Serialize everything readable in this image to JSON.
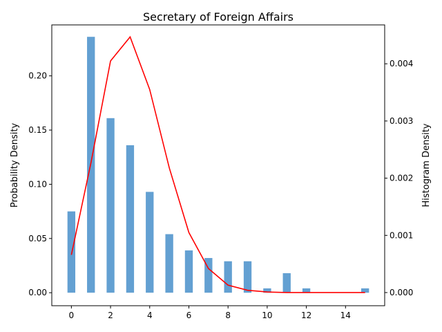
{
  "chart_data": {
    "type": "bar",
    "title": "Secretary of Foreign Affairs",
    "xlabel": "",
    "ylabel": "Probability Density",
    "ylabel_right": "Histogram Density",
    "x": [
      0,
      1,
      2,
      3,
      4,
      5,
      6,
      7,
      8,
      9,
      10,
      11,
      12,
      13,
      14,
      15
    ],
    "xlim": [
      -1,
      16
    ],
    "xticks": [
      0,
      2,
      4,
      6,
      8,
      10,
      12,
      14
    ],
    "ylim": [
      -0.012,
      0.247
    ],
    "yticks": [
      0.0,
      0.05,
      0.1,
      0.15,
      0.2
    ],
    "ylim_right": [
      -0.00023,
      0.00468
    ],
    "yticks_right": [
      0.0,
      0.001,
      0.002,
      0.003,
      0.004
    ],
    "grid": false,
    "series": [
      {
        "name": "",
        "type": "bar",
        "axis": "left",
        "color": "#5b9bd0",
        "values": [
          0.075,
          0.236,
          0.161,
          0.136,
          0.093,
          0.054,
          0.039,
          0.032,
          0.029,
          0.029,
          0.004,
          0.018,
          0.004,
          0,
          0,
          0.004
        ]
      },
      {
        "name": "",
        "type": "line",
        "axis": "right",
        "color": "#ff0000",
        "values": [
          0.00066,
          0.00227,
          0.00405,
          0.00447,
          0.00355,
          0.00218,
          0.00105,
          0.00042,
          0.00013,
          4e-05,
          1e-05,
          0.0,
          0.0,
          0.0,
          0.0,
          0.0
        ]
      }
    ]
  }
}
